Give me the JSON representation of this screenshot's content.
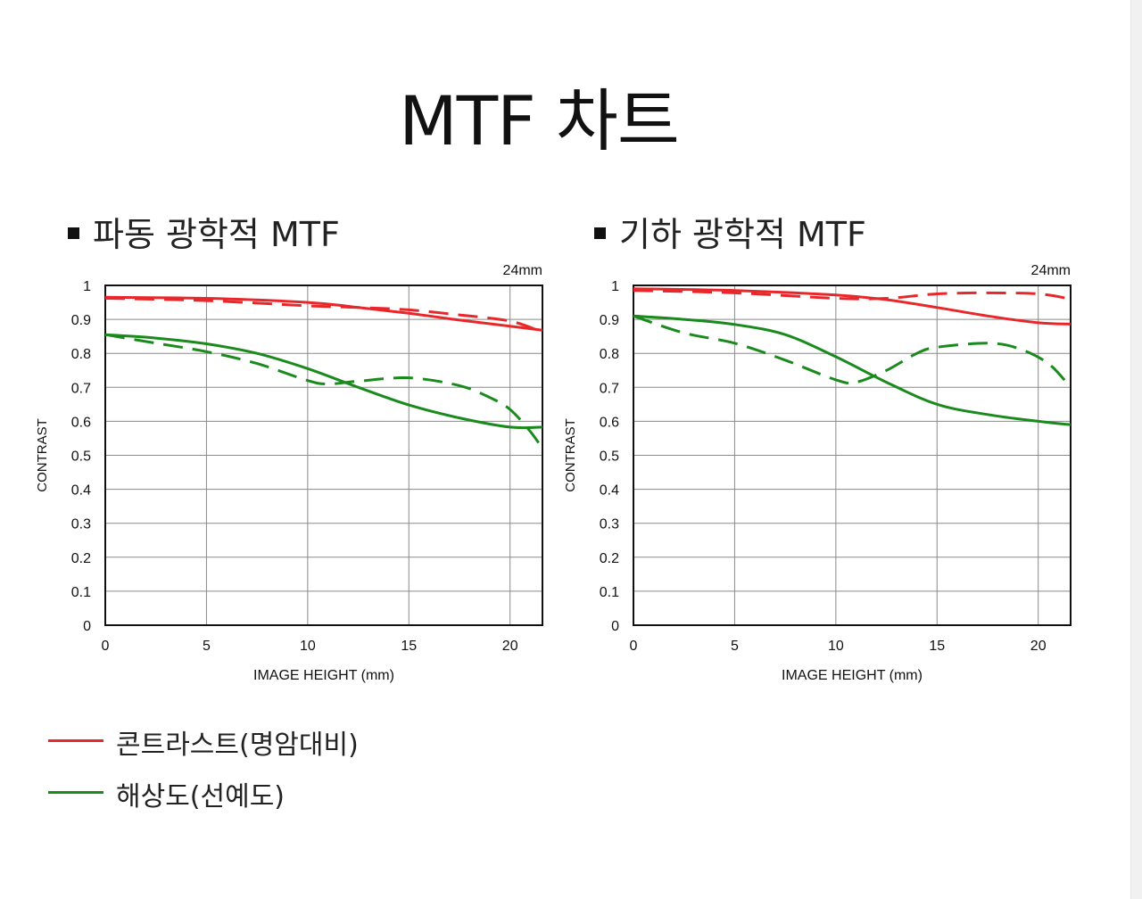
{
  "page": {
    "title": "MTF 차트"
  },
  "colors": {
    "contrast": "#e8272b",
    "resolution": "#1a8a1d"
  },
  "legend": [
    {
      "label": "콘트라스트(명암대비)",
      "color": "#e8272b"
    },
    {
      "label": "해상도(선예도)",
      "color": "#1a8a1d"
    }
  ],
  "charts": [
    {
      "heading": "파동 광학적 MTF"
    },
    {
      "heading": "기하 광학적 MTF"
    }
  ],
  "chart_data": [
    {
      "type": "line",
      "title": "파동 광학적 MTF",
      "focal_length": "24mm",
      "xlabel": "IMAGE HEIGHT (mm)",
      "ylabel": "CONTRAST",
      "xlim": [
        0,
        21.6
      ],
      "ylim": [
        0,
        1
      ],
      "x_ticks": [
        "0",
        "5",
        "10",
        "15",
        "20"
      ],
      "y_ticks": [
        "0",
        "0.1",
        "0.2",
        "0.3",
        "0.4",
        "0.5",
        "0.6",
        "0.7",
        "0.8",
        "0.9",
        "1"
      ],
      "grid": true,
      "series": [
        {
          "color": "#e8272b",
          "style": "solid",
          "x": [
            0,
            5,
            10,
            12.5,
            15,
            17.5,
            20,
            21.6
          ],
          "y": [
            0.965,
            0.962,
            0.95,
            0.935,
            0.918,
            0.898,
            0.88,
            0.868
          ]
        },
        {
          "color": "#e8272b",
          "style": "dashed",
          "x": [
            0,
            5,
            10,
            12.5,
            15,
            17.5,
            20,
            21.6
          ],
          "y": [
            0.962,
            0.955,
            0.94,
            0.935,
            0.928,
            0.913,
            0.895,
            0.862
          ]
        },
        {
          "color": "#1a8a1d",
          "style": "solid",
          "x": [
            0,
            2.5,
            5,
            7.5,
            10,
            12.5,
            15,
            17.5,
            20,
            21.6
          ],
          "y": [
            0.855,
            0.845,
            0.828,
            0.8,
            0.755,
            0.7,
            0.648,
            0.61,
            0.583,
            0.583
          ]
        },
        {
          "color": "#1a8a1d",
          "style": "dashed",
          "x": [
            0,
            2.5,
            5,
            7.5,
            10,
            11,
            12.5,
            15,
            17.5,
            19,
            20,
            21,
            21.6
          ],
          "y": [
            0.855,
            0.83,
            0.805,
            0.77,
            0.72,
            0.71,
            0.718,
            0.728,
            0.705,
            0.67,
            0.635,
            0.57,
            0.52
          ]
        }
      ]
    },
    {
      "type": "line",
      "title": "기하 광학적 MTF",
      "focal_length": "24mm",
      "xlabel": "IMAGE HEIGHT (mm)",
      "ylabel": "CONTRAST",
      "xlim": [
        0,
        21.6
      ],
      "ylim": [
        0,
        1
      ],
      "x_ticks": [
        "0",
        "5",
        "10",
        "15",
        "20"
      ],
      "y_ticks": [
        "0",
        "0.1",
        "0.2",
        "0.3",
        "0.4",
        "0.5",
        "0.6",
        "0.7",
        "0.8",
        "0.9",
        "1"
      ],
      "grid": true,
      "series": [
        {
          "color": "#e8272b",
          "style": "solid",
          "x": [
            0,
            5,
            10,
            12.5,
            15,
            17.5,
            20,
            21.6
          ],
          "y": [
            0.99,
            0.985,
            0.972,
            0.958,
            0.935,
            0.91,
            0.89,
            0.886
          ]
        },
        {
          "color": "#e8272b",
          "style": "dashed",
          "x": [
            0,
            5,
            10,
            12.5,
            15,
            17.5,
            20,
            21.6
          ],
          "y": [
            0.985,
            0.978,
            0.962,
            0.962,
            0.975,
            0.978,
            0.975,
            0.96
          ]
        },
        {
          "color": "#1a8a1d",
          "style": "solid",
          "x": [
            0,
            2.5,
            5,
            7.5,
            10,
            12.5,
            15,
            17.5,
            20,
            21.6
          ],
          "y": [
            0.91,
            0.9,
            0.885,
            0.855,
            0.79,
            0.715,
            0.65,
            0.62,
            0.6,
            0.59
          ]
        },
        {
          "color": "#1a8a1d",
          "style": "dashed",
          "x": [
            0,
            2.5,
            5,
            7.5,
            10,
            11,
            12.5,
            14,
            15,
            17.5,
            19,
            20.5,
            21.6
          ],
          "y": [
            0.91,
            0.86,
            0.83,
            0.78,
            0.722,
            0.715,
            0.75,
            0.8,
            0.818,
            0.83,
            0.815,
            0.77,
            0.7
          ]
        }
      ]
    }
  ]
}
